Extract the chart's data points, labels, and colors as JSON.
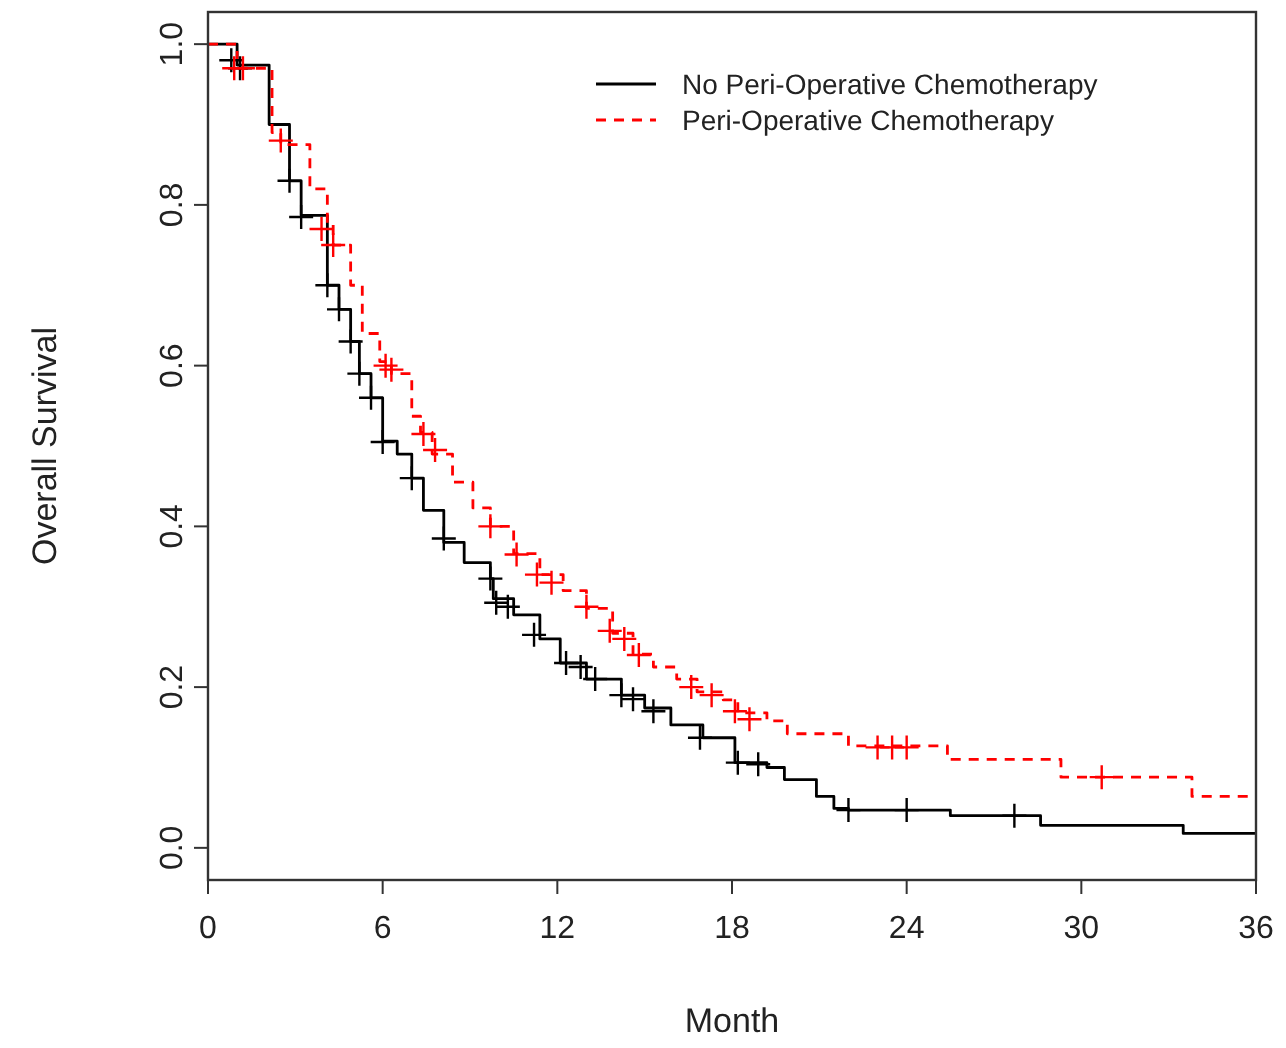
{
  "chart_data": {
    "type": "step",
    "xlabel": "Month",
    "ylabel": "Overall Survival",
    "xlim": [
      0,
      36
    ],
    "ylim": [
      -0.04,
      1.04
    ],
    "xticks": [
      0,
      6,
      12,
      18,
      24,
      30,
      36
    ],
    "yticks": [
      {
        "value": 0,
        "label": "0.0"
      },
      0.2,
      0.4,
      0.6,
      0.8,
      {
        "value": 1,
        "label": "1.0"
      }
    ],
    "grid": false,
    "legend": "top right",
    "series": [
      {
        "name": "No Peri-Operative Chemotherapy",
        "color": "#000000",
        "line_style": "solid",
        "x": [
          0,
          1.0,
          2.1,
          2.8,
          3.2,
          4.1,
          4.5,
          4.9,
          5.2,
          5.6,
          6.0,
          6.5,
          7.0,
          7.4,
          8.1,
          8.8,
          9.7,
          9.8,
          10.5,
          11.4,
          12.1,
          13.0,
          14.2,
          15.0,
          15.9,
          17.0,
          18.1,
          19.2,
          19.8,
          20.9,
          21.5,
          22.0,
          25.5,
          28.6,
          33.5,
          36
        ],
        "values": [
          1.0,
          0.974,
          0.9,
          0.83,
          0.787,
          0.7,
          0.67,
          0.63,
          0.59,
          0.56,
          0.506,
          0.49,
          0.46,
          0.42,
          0.38,
          0.355,
          0.335,
          0.31,
          0.29,
          0.26,
          0.23,
          0.21,
          0.19,
          0.174,
          0.153,
          0.137,
          0.106,
          0.1,
          0.085,
          0.064,
          0.049,
          0.047,
          0.04,
          0.028,
          0.018,
          0.018
        ]
      },
      {
        "name": "Peri-Operative Chemotherapy",
        "color": "#ff0000",
        "line_style": "dashed",
        "x": [
          0,
          1.0,
          2.2,
          2.5,
          3.5,
          4.1,
          4.3,
          4.9,
          5.3,
          5.9,
          6.3,
          7.0,
          7.3,
          7.7,
          8.4,
          9.1,
          9.7,
          10.5,
          11.4,
          12.2,
          13.0,
          13.9,
          14.6,
          15.3,
          16.1,
          16.8,
          17.7,
          18.2,
          19.2,
          19.9,
          22.0,
          25.4,
          29.3,
          33.8,
          36
        ],
        "values": [
          1.0,
          0.97,
          0.89,
          0.875,
          0.82,
          0.776,
          0.75,
          0.7,
          0.64,
          0.605,
          0.59,
          0.537,
          0.517,
          0.49,
          0.455,
          0.423,
          0.4,
          0.366,
          0.34,
          0.32,
          0.298,
          0.267,
          0.241,
          0.225,
          0.21,
          0.194,
          0.184,
          0.168,
          0.158,
          0.142,
          0.127,
          0.11,
          0.088,
          0.064,
          0.064
        ]
      },
      {
        "type": "scatter",
        "marker": "cross",
        "color": "#000000",
        "x": [
          0.8,
          1.1,
          2.8,
          3.2,
          4.1,
          4.5,
          4.9,
          5.2,
          5.6,
          6.0,
          7.0,
          8.1,
          9.7,
          9.9,
          10.3,
          11.2,
          12.3,
          12.8,
          13.3,
          14.2,
          14.6,
          15.3,
          16.9,
          18.2,
          18.9,
          22.0,
          24.0,
          27.7
        ],
        "values": [
          0.98,
          0.97,
          0.83,
          0.785,
          0.7,
          0.67,
          0.63,
          0.59,
          0.56,
          0.505,
          0.46,
          0.385,
          0.335,
          0.305,
          0.3,
          0.265,
          0.23,
          0.225,
          0.21,
          0.19,
          0.185,
          0.17,
          0.137,
          0.106,
          0.104,
          0.047,
          0.047,
          0.04
        ]
      },
      {
        "type": "scatter",
        "marker": "cross",
        "color": "#ff0000",
        "x": [
          0.9,
          1.2,
          2.5,
          3.9,
          4.3,
          6.1,
          6.3,
          7.4,
          7.8,
          9.7,
          10.6,
          11.3,
          11.8,
          13.0,
          13.8,
          14.3,
          14.8,
          16.6,
          17.3,
          18.1,
          18.6,
          23.0,
          23.5,
          24.0,
          30.7
        ],
        "values": [
          0.97,
          0.97,
          0.88,
          0.77,
          0.75,
          0.6,
          0.595,
          0.515,
          0.495,
          0.4,
          0.365,
          0.34,
          0.33,
          0.3,
          0.27,
          0.26,
          0.24,
          0.2,
          0.19,
          0.17,
          0.16,
          0.125,
          0.125,
          0.125,
          0.088
        ]
      }
    ]
  }
}
